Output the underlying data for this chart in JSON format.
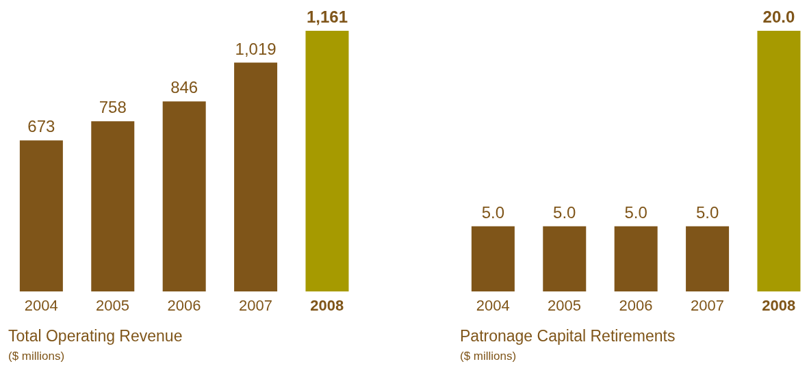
{
  "chart_data": [
    {
      "type": "bar",
      "title": "Total Operating Revenue",
      "subtitle": "($ millions)",
      "categories": [
        "2004",
        "2005",
        "2006",
        "2007",
        "2008"
      ],
      "values": [
        673,
        758,
        846,
        1019,
        1161
      ],
      "value_labels": [
        "673",
        "758",
        "846",
        "1,019",
        "1,161"
      ],
      "colors": [
        "#7f5519",
        "#7f5519",
        "#7f5519",
        "#7f5519",
        "#a69a00"
      ]
    },
    {
      "type": "bar",
      "title": "Patronage Capital Retirements",
      "subtitle": "($ millions)",
      "categories": [
        "2004",
        "2005",
        "2006",
        "2007",
        "2008"
      ],
      "values": [
        5.0,
        5.0,
        5.0,
        5.0,
        20.0
      ],
      "value_labels": [
        "5.0",
        "5.0",
        "5.0",
        "5.0",
        "20.0"
      ],
      "colors": [
        "#7f5519",
        "#7f5519",
        "#7f5519",
        "#7f5519",
        "#a69a00"
      ]
    }
  ]
}
